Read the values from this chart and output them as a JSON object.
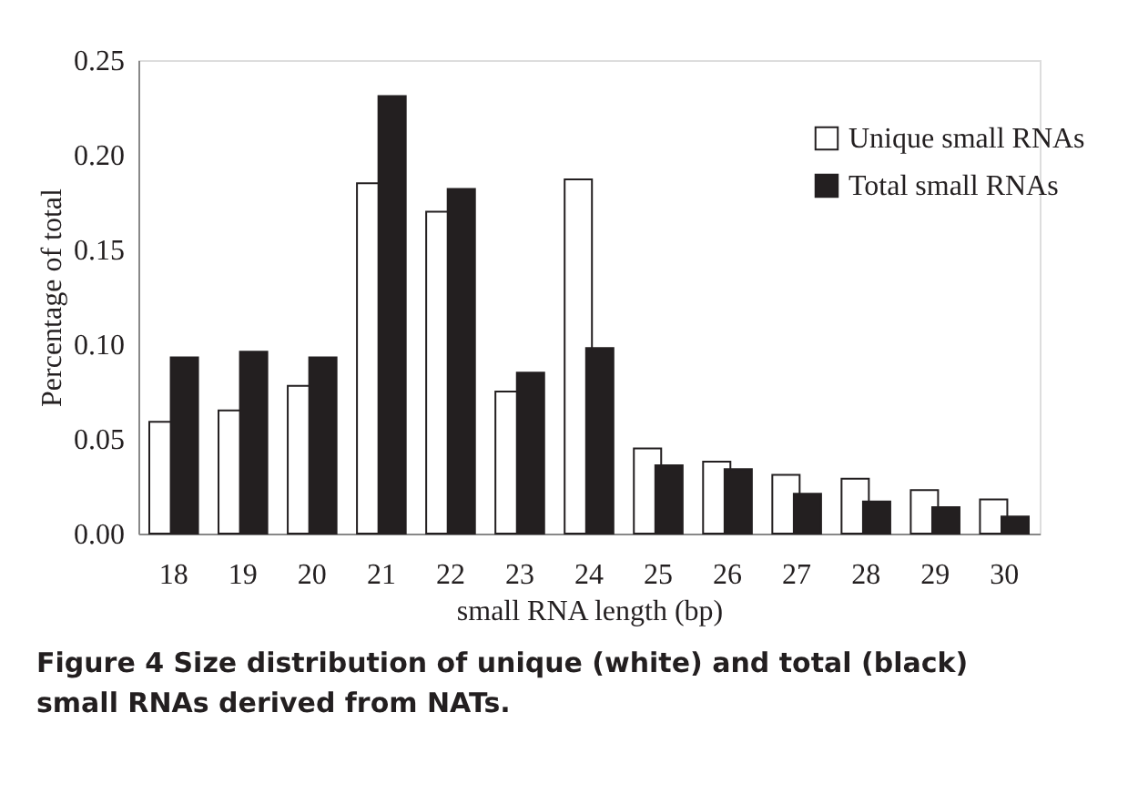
{
  "chart_data": {
    "type": "bar",
    "xlabel": "small RNA length (bp)",
    "ylabel": "Percentage of total",
    "categories": [
      "18",
      "19",
      "20",
      "21",
      "22",
      "23",
      "24",
      "25",
      "26",
      "27",
      "28",
      "29",
      "30"
    ],
    "series": [
      {
        "name": "Unique small RNAs",
        "color": "#ffffff",
        "values": [
          0.059,
          0.065,
          0.078,
          0.185,
          0.17,
          0.075,
          0.187,
          0.045,
          0.038,
          0.031,
          0.029,
          0.023,
          0.018
        ]
      },
      {
        "name": "Total small RNAs",
        "color": "#231f20",
        "values": [
          0.093,
          0.096,
          0.093,
          0.231,
          0.182,
          0.085,
          0.098,
          0.036,
          0.034,
          0.021,
          0.017,
          0.014,
          0.009
        ]
      }
    ],
    "ylim": [
      0,
      0.25
    ],
    "yticks": [
      {
        "value": 0,
        "label": "0.00"
      },
      {
        "value": 0.05,
        "label": "0.05"
      },
      {
        "value": 0.1,
        "label": "0.10"
      },
      {
        "value": 0.15,
        "label": "0.15"
      },
      {
        "value": 0.2,
        "label": "0.20"
      },
      {
        "value": 0.25,
        "label": "0.25"
      }
    ],
    "grid": false,
    "legend": "top right",
    "annotations": [
      "Figure 4 Size distribution of unique (white) and total (black) small RNAs derived from NATs."
    ]
  }
}
